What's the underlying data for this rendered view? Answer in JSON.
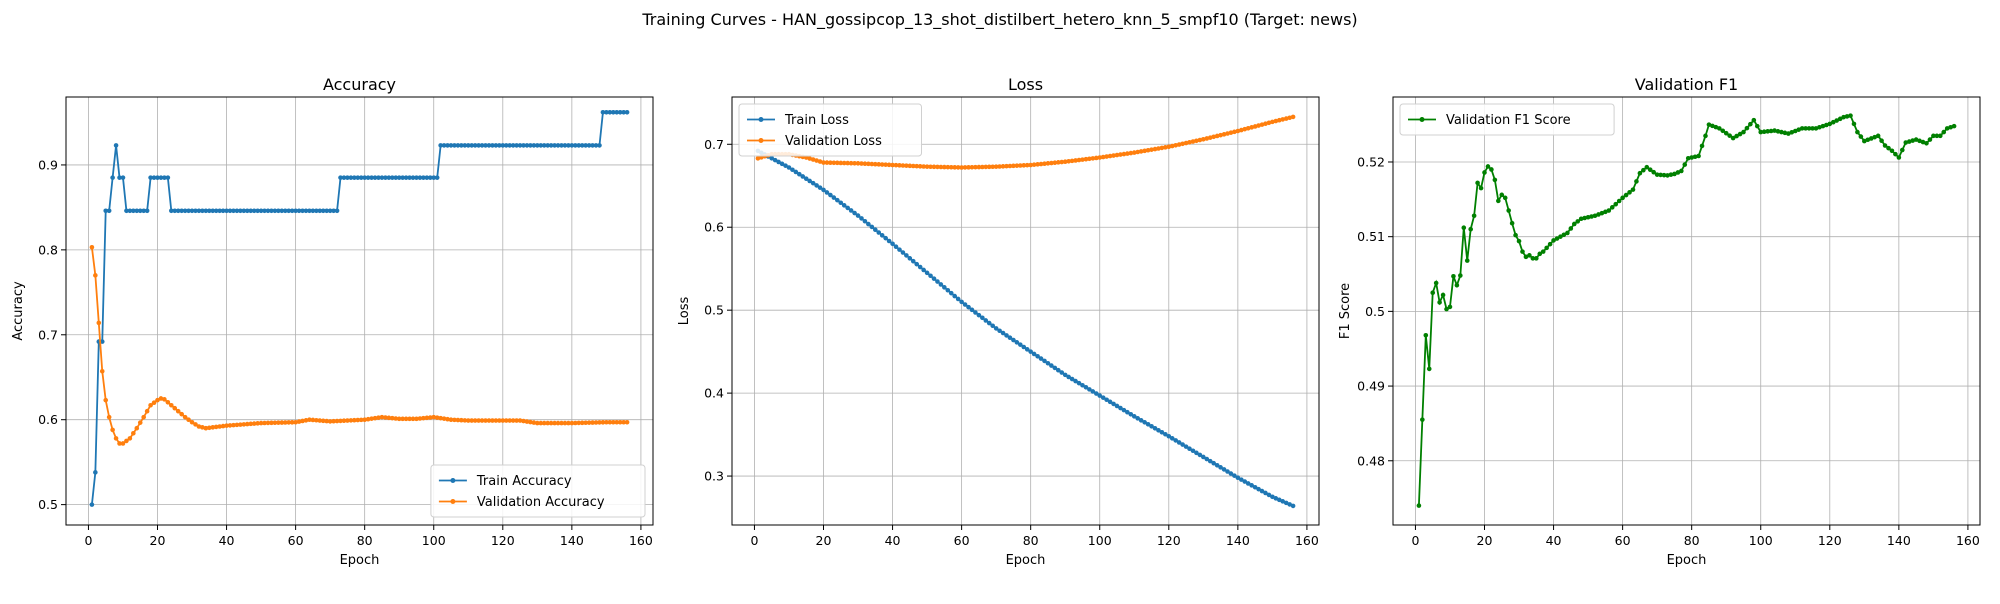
{
  "figure": {
    "title": "Training Curves - HAN_gossipcop_13_shot_distilbert_hetero_knn_5_smpf10 (Target: news)"
  },
  "colors": {
    "blue": "#1f77b4",
    "orange": "#ff7f0e",
    "green": "#008000",
    "grid": "#b0b0b0"
  },
  "chart_data": [
    {
      "type": "line",
      "title": "Accuracy",
      "xlabel": "Epoch",
      "ylabel": "Accuracy",
      "xlim": [
        -6.5,
        163.5
      ],
      "ylim": [
        0.476,
        0.98
      ],
      "xticks": [
        0,
        20,
        40,
        60,
        80,
        100,
        120,
        140,
        160
      ],
      "yticks": [
        0.5,
        0.6,
        0.7,
        0.8,
        0.9
      ],
      "grid": true,
      "legend": "bottom-right",
      "series": [
        {
          "name": "Train Accuracy",
          "color": "#1f77b4",
          "x_range": [
            1,
            156
          ],
          "points": [
            [
              1,
              0.5
            ],
            [
              2,
              0.538
            ],
            [
              3,
              0.692
            ],
            [
              4,
              0.692
            ],
            [
              5,
              0.846
            ],
            [
              6,
              0.846
            ],
            [
              7,
              0.885
            ],
            [
              8,
              0.923
            ],
            [
              9,
              0.885
            ],
            [
              10,
              0.885
            ],
            [
              11,
              0.846
            ],
            [
              17,
              0.846
            ],
            [
              18,
              0.885
            ],
            [
              23,
              0.885
            ],
            [
              24,
              0.846
            ],
            [
              72,
              0.846
            ],
            [
              73,
              0.885
            ],
            [
              101,
              0.885
            ],
            [
              102,
              0.923
            ],
            [
              148,
              0.923
            ],
            [
              149,
              0.962
            ],
            [
              156,
              0.962
            ]
          ]
        },
        {
          "name": "Validation Accuracy",
          "color": "#ff7f0e",
          "x_range": [
            1,
            156
          ],
          "points": [
            [
              1,
              0.803
            ],
            [
              2,
              0.77
            ],
            [
              3,
              0.714
            ],
            [
              4,
              0.657
            ],
            [
              5,
              0.623
            ],
            [
              6,
              0.603
            ],
            [
              7,
              0.588
            ],
            [
              8,
              0.578
            ],
            [
              9,
              0.572
            ],
            [
              10,
              0.572
            ],
            [
              12,
              0.578
            ],
            [
              14,
              0.59
            ],
            [
              16,
              0.603
            ],
            [
              18,
              0.617
            ],
            [
              20,
              0.623
            ],
            [
              21,
              0.625
            ],
            [
              22,
              0.624
            ],
            [
              24,
              0.617
            ],
            [
              26,
              0.61
            ],
            [
              28,
              0.603
            ],
            [
              30,
              0.597
            ],
            [
              32,
              0.592
            ],
            [
              34,
              0.59
            ],
            [
              36,
              0.591
            ],
            [
              40,
              0.593
            ],
            [
              50,
              0.596
            ],
            [
              60,
              0.597
            ],
            [
              64,
              0.6
            ],
            [
              70,
              0.598
            ],
            [
              80,
              0.6
            ],
            [
              85,
              0.603
            ],
            [
              90,
              0.601
            ],
            [
              95,
              0.601
            ],
            [
              100,
              0.603
            ],
            [
              105,
              0.6
            ],
            [
              110,
              0.599
            ],
            [
              120,
              0.599
            ],
            [
              125,
              0.599
            ],
            [
              130,
              0.596
            ],
            [
              140,
              0.596
            ],
            [
              150,
              0.597
            ],
            [
              156,
              0.597
            ]
          ]
        }
      ]
    },
    {
      "type": "line",
      "title": "Loss",
      "xlabel": "Epoch",
      "ylabel": "Loss",
      "xlim": [
        -6.5,
        163.5
      ],
      "ylim": [
        0.241,
        0.757
      ],
      "xticks": [
        0,
        20,
        40,
        60,
        80,
        100,
        120,
        140,
        160
      ],
      "yticks": [
        0.3,
        0.4,
        0.5,
        0.6,
        0.7
      ],
      "grid": true,
      "legend": "top-left",
      "series": [
        {
          "name": "Train Loss",
          "color": "#1f77b4",
          "x_range": [
            1,
            156
          ],
          "points": [
            [
              1,
              0.692
            ],
            [
              10,
              0.672
            ],
            [
              20,
              0.645
            ],
            [
              30,
              0.614
            ],
            [
              40,
              0.58
            ],
            [
              50,
              0.545
            ],
            [
              60,
              0.51
            ],
            [
              70,
              0.478
            ],
            [
              80,
              0.45
            ],
            [
              90,
              0.422
            ],
            [
              100,
              0.397
            ],
            [
              110,
              0.372
            ],
            [
              120,
              0.348
            ],
            [
              130,
              0.323
            ],
            [
              140,
              0.298
            ],
            [
              150,
              0.275
            ],
            [
              156,
              0.264
            ]
          ]
        },
        {
          "name": "Validation Loss",
          "color": "#ff7f0e",
          "x_range": [
            1,
            156
          ],
          "points": [
            [
              1,
              0.683
            ],
            [
              5,
              0.688
            ],
            [
              10,
              0.688
            ],
            [
              15,
              0.684
            ],
            [
              20,
              0.678
            ],
            [
              30,
              0.677
            ],
            [
              40,
              0.675
            ],
            [
              50,
              0.673
            ],
            [
              60,
              0.672
            ],
            [
              70,
              0.673
            ],
            [
              80,
              0.675
            ],
            [
              90,
              0.679
            ],
            [
              100,
              0.684
            ],
            [
              110,
              0.69
            ],
            [
              120,
              0.697
            ],
            [
              130,
              0.706
            ],
            [
              140,
              0.716
            ],
            [
              150,
              0.727
            ],
            [
              156,
              0.733
            ]
          ]
        }
      ]
    },
    {
      "type": "line",
      "title": "Validation F1",
      "xlabel": "Epoch",
      "ylabel": "F1 Score",
      "xlim": [
        -6.5,
        163.5
      ],
      "ylim": [
        0.4714,
        0.5287
      ],
      "xticks": [
        0,
        20,
        40,
        60,
        80,
        100,
        120,
        140,
        160
      ],
      "yticks": [
        0.48,
        0.49,
        0.5,
        0.51,
        0.52
      ],
      "grid": true,
      "legend": "top-left",
      "series": [
        {
          "name": "Validation F1 Score",
          "color": "#008000",
          "x_range": [
            1,
            156
          ],
          "points": [
            [
              1,
              0.474
            ],
            [
              2,
              0.4855
            ],
            [
              3,
              0.4968
            ],
            [
              4,
              0.4923
            ],
            [
              5,
              0.5025
            ],
            [
              6,
              0.5038
            ],
            [
              7,
              0.5012
            ],
            [
              8,
              0.5022
            ],
            [
              9,
              0.5003
            ],
            [
              10,
              0.5006
            ],
            [
              11,
              0.5047
            ],
            [
              12,
              0.5035
            ],
            [
              13,
              0.5048
            ],
            [
              14,
              0.5112
            ],
            [
              15,
              0.5068
            ],
            [
              16,
              0.511
            ],
            [
              17,
              0.5128
            ],
            [
              18,
              0.5172
            ],
            [
              19,
              0.5165
            ],
            [
              20,
              0.5186
            ],
            [
              21,
              0.5194
            ],
            [
              22,
              0.519
            ],
            [
              23,
              0.5176
            ],
            [
              24,
              0.5148
            ],
            [
              25,
              0.5156
            ],
            [
              26,
              0.5152
            ],
            [
              27,
              0.5135
            ],
            [
              28,
              0.5118
            ],
            [
              29,
              0.5102
            ],
            [
              30,
              0.5094
            ],
            [
              31,
              0.508
            ],
            [
              32,
              0.5073
            ],
            [
              33,
              0.5075
            ],
            [
              34,
              0.5071
            ],
            [
              35,
              0.5071
            ],
            [
              36,
              0.5077
            ],
            [
              37,
              0.508
            ],
            [
              40,
              0.5095
            ],
            [
              44,
              0.5105
            ],
            [
              46,
              0.5117
            ],
            [
              48,
              0.5124
            ],
            [
              52,
              0.5128
            ],
            [
              56,
              0.5135
            ],
            [
              60,
              0.5152
            ],
            [
              63,
              0.5163
            ],
            [
              65,
              0.5185
            ],
            [
              67,
              0.5193
            ],
            [
              70,
              0.5183
            ],
            [
              73,
              0.5182
            ],
            [
              75,
              0.5184
            ],
            [
              77,
              0.5188
            ],
            [
              79,
              0.5205
            ],
            [
              82,
              0.5208
            ],
            [
              84,
              0.5235
            ],
            [
              85,
              0.525
            ],
            [
              88,
              0.5245
            ],
            [
              92,
              0.5232
            ],
            [
              95,
              0.524
            ],
            [
              98,
              0.5256
            ],
            [
              100,
              0.524
            ],
            [
              104,
              0.5242
            ],
            [
              108,
              0.5238
            ],
            [
              112,
              0.5245
            ],
            [
              116,
              0.5245
            ],
            [
              120,
              0.5251
            ],
            [
              124,
              0.526
            ],
            [
              126,
              0.5262
            ],
            [
              128,
              0.524
            ],
            [
              130,
              0.5228
            ],
            [
              134,
              0.5235
            ],
            [
              136,
              0.5222
            ],
            [
              138,
              0.5215
            ],
            [
              140,
              0.5206
            ],
            [
              142,
              0.5226
            ],
            [
              145,
              0.523
            ],
            [
              148,
              0.5225
            ],
            [
              150,
              0.5235
            ],
            [
              152,
              0.5235
            ],
            [
              154,
              0.5245
            ],
            [
              156,
              0.5248
            ]
          ]
        }
      ]
    }
  ]
}
